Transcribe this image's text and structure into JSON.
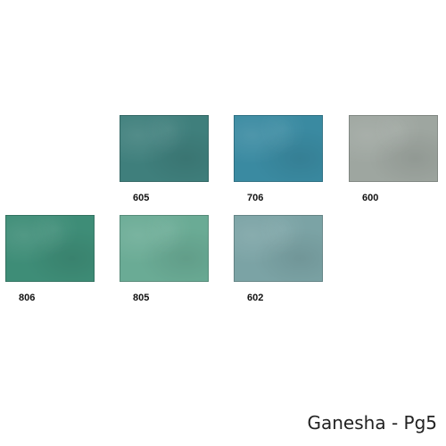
{
  "swatches": [
    {
      "code": "605",
      "color": "#3f7f7c"
    },
    {
      "code": "706",
      "color": "#3a8aa1"
    },
    {
      "code": "600",
      "color": "#9ea6a0"
    },
    {
      "code": "806",
      "color": "#3e8d77"
    },
    {
      "code": "805",
      "color": "#6aab95"
    },
    {
      "code": "602",
      "color": "#7ba3a5"
    }
  ],
  "caption": "Ganesha - Pg5"
}
